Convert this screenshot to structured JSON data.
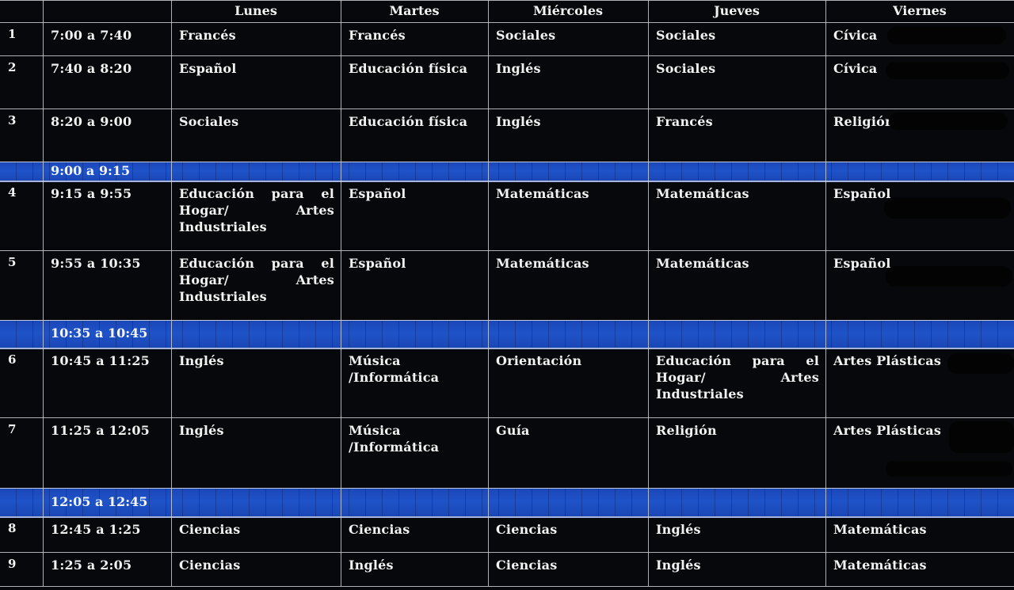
{
  "days": [
    "Lunes",
    "Martes",
    "Miércoles",
    "Jueves",
    "Viernes"
  ],
  "rows": [
    {
      "kind": "class",
      "num": "1",
      "time": "7:00 a 7:40",
      "cells": [
        "Francés",
        "Francés",
        "Sociales",
        "Sociales",
        "Cívica"
      ]
    },
    {
      "kind": "class",
      "num": "2",
      "time": "7:40 a 8:20",
      "cells": [
        "Español",
        "Educación física",
        "Inglés",
        "Sociales",
        "Cívica"
      ]
    },
    {
      "kind": "class",
      "num": "3",
      "time": "8:20 a 9:00",
      "cells": [
        "Sociales",
        "Educación física",
        "Inglés",
        "Francés",
        "Religión"
      ]
    },
    {
      "kind": "break",
      "time": "9:00 a 9:15"
    },
    {
      "kind": "class",
      "num": "4",
      "time": "9:15 a 9:55",
      "cells": [
        "Educación para el Hogar/ Artes Industriales",
        "Español",
        "Matemáticas",
        "Matemáticas",
        "Español"
      ]
    },
    {
      "kind": "class",
      "num": "5",
      "time": "9:55 a 10:35",
      "cells": [
        "Educación para el Hogar/ Artes Industriales",
        "Español",
        "Matemáticas",
        "Matemáticas",
        "Español"
      ]
    },
    {
      "kind": "break",
      "time": "10:35 a 10:45"
    },
    {
      "kind": "class",
      "num": "6",
      "time": "10:45 a 11:25",
      "cells": [
        "Inglés",
        "Música /Informática",
        "Orientación",
        "Educación para el Hogar/ Artes Industriales",
        "Artes Plásticas"
      ]
    },
    {
      "kind": "class",
      "num": "7",
      "time": "11:25 a 12:05",
      "cells": [
        "Inglés",
        "Música /Informática",
        "Guía",
        "Religión",
        "Artes Plásticas"
      ]
    },
    {
      "kind": "break",
      "time": "12:05 a 12:45"
    },
    {
      "kind": "class",
      "num": "8",
      "time": "12:45 a 1:25",
      "cells": [
        "Ciencias",
        "Ciencias",
        "Ciencias",
        "Inglés",
        "Matemáticas"
      ]
    },
    {
      "kind": "class",
      "num": "9",
      "time": "1:25 a 2:05",
      "cells": [
        "Ciencias",
        "Inglés",
        "Ciencias",
        "Inglés",
        "Matemáticas"
      ]
    }
  ],
  "colors": {
    "break_bar": "#1f53c8",
    "background": "#07080b",
    "grid": "#c9ccd3",
    "text": "#f2f2f2"
  }
}
